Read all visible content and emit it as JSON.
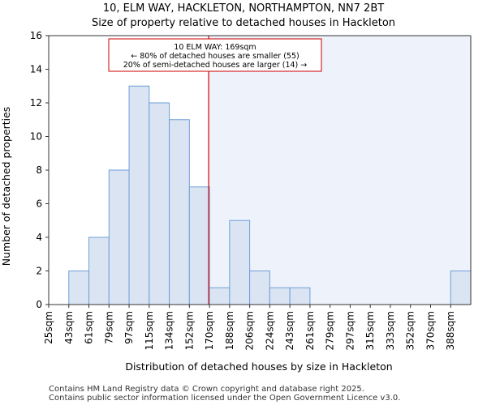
{
  "chart_data": {
    "type": "bar",
    "title": "10, ELM WAY, HACKLETON, NORTHAMPTON, NN7 2BT",
    "subtitle": "Size of property relative to detached houses in Hackleton",
    "xlabel": "Distribution of detached houses by size in Hackleton",
    "ylabel": "Number of detached properties",
    "ylim": [
      0,
      16
    ],
    "yticks": [
      "0",
      "2",
      "4",
      "6",
      "8",
      "10",
      "12",
      "14",
      "16"
    ],
    "bin_edges": [
      "25sqm",
      "43sqm",
      "61sqm",
      "79sqm",
      "97sqm",
      "115sqm",
      "134sqm",
      "152sqm",
      "170sqm",
      "188sqm",
      "206sqm",
      "224sqm",
      "243sqm",
      "261sqm",
      "279sqm",
      "297sqm",
      "315sqm",
      "333sqm",
      "352sqm",
      "370sqm",
      "388sqm"
    ],
    "values": [
      0,
      2,
      4,
      8,
      13,
      12,
      11,
      7,
      1,
      5,
      2,
      1,
      1,
      0,
      0,
      0,
      0,
      0,
      0,
      0,
      2
    ],
    "property_bin_index": 7.96,
    "annotation": {
      "line1": "10 ELM WAY: 169sqm",
      "line2": "← 80% of detached houses are smaller (55)",
      "line3": "20% of semi-detached houses are larger (14) →"
    },
    "colors": {
      "bar_fill": "#dae4f3",
      "bar_stroke": "#6f9fd8",
      "marker_line": "#cc0000",
      "shade": "#eef2fa",
      "axis": "#333333"
    }
  },
  "footer": {
    "line1": "Contains HM Land Registry data © Crown copyright and database right 2025.",
    "line2": "Contains public sector information licensed under the Open Government Licence v3.0."
  }
}
